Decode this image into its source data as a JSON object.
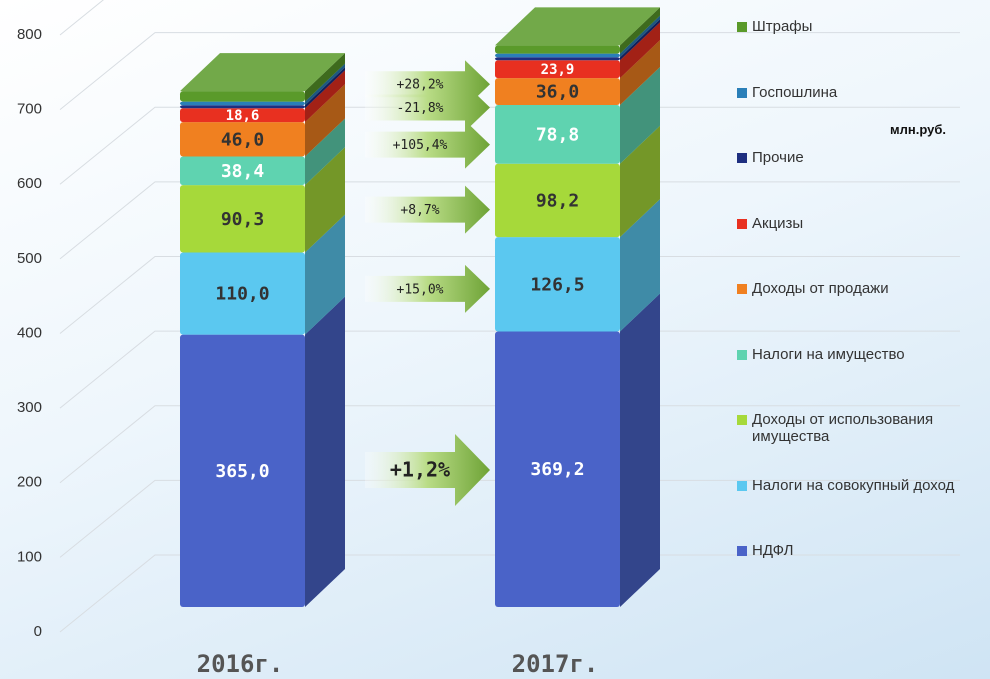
{
  "chart_data": {
    "type": "bar3d-stacked",
    "unit": "млн.руб.",
    "categories": [
      "2016г.",
      "2017г."
    ],
    "ylim": [
      0,
      800
    ],
    "yticks": [
      0,
      100,
      200,
      300,
      400,
      500,
      600,
      700,
      800
    ],
    "grid": true,
    "series": [
      {
        "name": "НДФЛ",
        "color": "#4a63c8",
        "values": [
          365.0,
          369.2
        ],
        "value_labels": [
          "365,0",
          "369,2"
        ],
        "change_label": "+1,2%"
      },
      {
        "name": "Налоги на совокупный доход",
        "color": "#5bc8f0",
        "values": [
          110.0,
          126.5
        ],
        "value_labels": [
          "110,0",
          "126,5"
        ],
        "change_label": "+15,0%"
      },
      {
        "name": "Доходы от использования имущества",
        "color": "#a6d93a",
        "values": [
          90.3,
          98.2
        ],
        "value_labels": [
          "90,3",
          "98,2"
        ],
        "change_label": "+8,7%"
      },
      {
        "name": "Налоги на имущество",
        "color": "#5fd3b0",
        "values": [
          38.4,
          78.8
        ],
        "value_labels": [
          "38,4",
          "78,8"
        ],
        "change_label": "+105,4%"
      },
      {
        "name": "Доходы от продажи",
        "color": "#f08020",
        "values": [
          46.0,
          36.0
        ],
        "value_labels": [
          "46,0",
          "36,0"
        ],
        "change_label": "-21,8%"
      },
      {
        "name": "Акцизы",
        "color": "#e83020",
        "values": [
          18.6,
          23.9
        ],
        "value_labels": [
          "18,6",
          "23,9"
        ],
        "change_label": "+28,2%"
      },
      {
        "name": "Прочие",
        "color": "#1e2f80",
        "values": [
          4.0,
          4.0
        ]
      },
      {
        "name": "Госпошлина",
        "color": "#2a7fb8",
        "values": [
          5.0,
          5.0
        ]
      },
      {
        "name": "Штрафы",
        "color": "#5a9a2a",
        "values": [
          14.0,
          11.0
        ]
      }
    ]
  }
}
